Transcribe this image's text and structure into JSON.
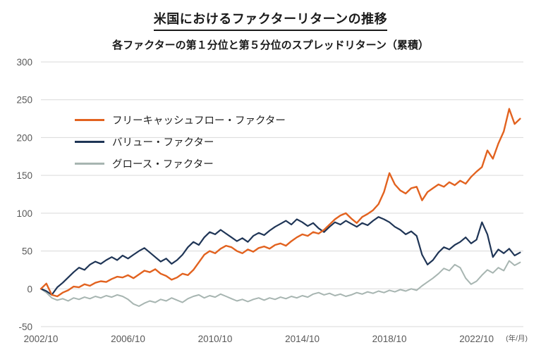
{
  "title": "米国におけるファクターリターンの推移",
  "subtitle": "各ファクターの第１分位と第５分位のスプレッドリターン（累積）",
  "axis_note": "(年/月)",
  "colors": {
    "fcf": "#E2621F",
    "value": "#1F3556",
    "growth": "#A7B5B1",
    "grid": "#D9D9D9",
    "tick_text": "#595959"
  },
  "chart_data": {
    "type": "line",
    "title": "米国におけるファクターリターンの推移",
    "subtitle": "各ファクターの第１分位と第５分位のスプレッドリターン（累積）",
    "ylabel": "",
    "xlabel": "(年/月)",
    "ylim": [
      -50,
      300
    ],
    "xlim": [
      2002.75,
      2024.9
    ],
    "grid": "horizontal-only",
    "legend_position": "inside-top-left",
    "y_ticks": [
      300,
      250,
      200,
      150,
      100,
      50,
      0,
      -50
    ],
    "x_ticks": [
      {
        "label": "2002/10",
        "t": 2002.75
      },
      {
        "label": "2006/10",
        "t": 2006.75
      },
      {
        "label": "2010/10",
        "t": 2010.75
      },
      {
        "label": "2014/10",
        "t": 2014.75
      },
      {
        "label": "2018/10",
        "t": 2018.75
      },
      {
        "label": "2022/10",
        "t": 2022.75
      }
    ],
    "x_start": 2002.75,
    "x_step": 0.25,
    "series": [
      {
        "name": "フリーキャッシュフロー・ファクター",
        "color_key": "fcf",
        "stroke_width": 2.4,
        "values": [
          0,
          7,
          -8,
          -10,
          -5,
          -2,
          3,
          2,
          6,
          4,
          8,
          10,
          9,
          13,
          16,
          15,
          18,
          14,
          19,
          24,
          22,
          26,
          20,
          17,
          12,
          15,
          20,
          18,
          25,
          35,
          45,
          50,
          47,
          53,
          57,
          55,
          50,
          47,
          52,
          49,
          54,
          56,
          53,
          58,
          60,
          57,
          63,
          68,
          72,
          70,
          75,
          73,
          78,
          85,
          92,
          97,
          100,
          93,
          87,
          95,
          99,
          104,
          112,
          128,
          153,
          138,
          130,
          126,
          133,
          135,
          117,
          128,
          133,
          138,
          135,
          141,
          137,
          143,
          139,
          148,
          155,
          161,
          183,
          172,
          192,
          208,
          238,
          218,
          225
        ]
      },
      {
        "name": "バリュー・ファクター",
        "color_key": "value",
        "stroke_width": 2.2,
        "values": [
          0,
          -3,
          -8,
          2,
          8,
          15,
          22,
          28,
          25,
          32,
          36,
          33,
          38,
          42,
          38,
          44,
          40,
          45,
          50,
          54,
          48,
          42,
          36,
          40,
          33,
          38,
          45,
          55,
          62,
          58,
          68,
          75,
          72,
          78,
          73,
          68,
          63,
          67,
          62,
          70,
          74,
          71,
          77,
          82,
          86,
          90,
          85,
          92,
          88,
          83,
          87,
          80,
          75,
          82,
          88,
          85,
          90,
          86,
          82,
          87,
          84,
          90,
          95,
          92,
          88,
          82,
          78,
          72,
          76,
          70,
          45,
          32,
          38,
          48,
          55,
          52,
          58,
          62,
          68,
          60,
          65,
          88,
          72,
          42,
          52,
          47,
          53,
          44,
          48
        ]
      },
      {
        "name": "グロース・ファクター",
        "color_key": "growth",
        "stroke_width": 2.0,
        "values": [
          0,
          -5,
          -12,
          -15,
          -13,
          -16,
          -12,
          -14,
          -11,
          -13,
          -10,
          -12,
          -9,
          -11,
          -8,
          -10,
          -14,
          -20,
          -23,
          -19,
          -16,
          -18,
          -14,
          -16,
          -12,
          -15,
          -18,
          -13,
          -10,
          -8,
          -12,
          -9,
          -11,
          -7,
          -10,
          -13,
          -16,
          -14,
          -17,
          -14,
          -12,
          -15,
          -12,
          -14,
          -11,
          -13,
          -10,
          -12,
          -9,
          -11,
          -7,
          -5,
          -8,
          -6,
          -9,
          -7,
          -10,
          -8,
          -5,
          -7,
          -4,
          -6,
          -3,
          -5,
          -2,
          -4,
          -1,
          -3,
          0,
          -2,
          4,
          9,
          14,
          20,
          27,
          24,
          32,
          28,
          14,
          6,
          10,
          18,
          25,
          21,
          28,
          24,
          37,
          31,
          35
        ]
      }
    ]
  }
}
